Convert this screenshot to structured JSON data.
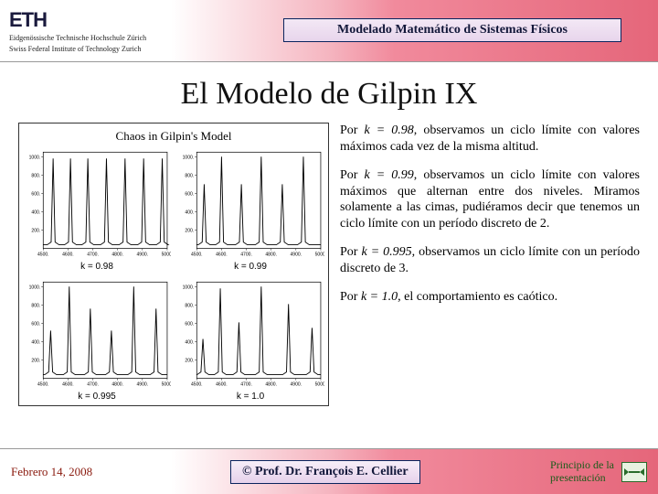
{
  "header": {
    "logo": "ETH",
    "sub1": "Eidgenössische Technische Hochschule Zürich",
    "sub2": "Swiss Federal Institute of Technology Zurich",
    "banner": "Modelado Matemático de Sistemas Físicos"
  },
  "title": "El Modelo de Gilpin IX",
  "chart": {
    "title": "Chaos in Gilpin's Model",
    "title_fontsize": 13,
    "title_font": "Comic Sans MS",
    "panels": [
      {
        "k_label": "k = 0.98",
        "yticks": [
          200,
          400,
          600,
          800,
          1000
        ],
        "xticks": [
          "4500.",
          "4600.",
          "4700.",
          "4800.",
          "4900.",
          "5000."
        ],
        "ylim": [
          0,
          1050
        ],
        "xlim": [
          4500,
          5000
        ],
        "peaks_x": [
          4540,
          4610,
          4680,
          4755,
          4830,
          4905,
          4980
        ],
        "peaks_y": [
          980,
          980,
          980,
          980,
          980,
          980,
          980
        ],
        "line_color": "#000000"
      },
      {
        "k_label": "k = 0.99",
        "yticks": [
          200,
          400,
          600,
          800,
          1000
        ],
        "xticks": [
          "4500.",
          "4600.",
          "4700.",
          "4800.",
          "4900.",
          "5000."
        ],
        "ylim": [
          0,
          1050
        ],
        "xlim": [
          4500,
          5000
        ],
        "peaks_x": [
          4530,
          4600,
          4680,
          4760,
          4845,
          4930
        ],
        "peaks_y": [
          700,
          1000,
          700,
          1000,
          700,
          1000
        ],
        "line_color": "#000000"
      },
      {
        "k_label": "k = 0.995",
        "yticks": [
          200,
          400,
          600,
          800,
          1000
        ],
        "xticks": [
          "4500.",
          "4600.",
          "4700.",
          "4800.",
          "4900.",
          "5000."
        ],
        "ylim": [
          0,
          1050
        ],
        "xlim": [
          4500,
          5000
        ],
        "peaks_x": [
          4530,
          4605,
          4690,
          4775,
          4865,
          4955
        ],
        "peaks_y": [
          520,
          1000,
          760,
          520,
          1000,
          760
        ],
        "line_color": "#000000"
      },
      {
        "k_label": "k = 1.0",
        "yticks": [
          200,
          400,
          600,
          800,
          1000
        ],
        "xticks": [
          "4500.",
          "4600.",
          "4700.",
          "4800.",
          "4900.",
          "5000."
        ],
        "ylim": [
          0,
          1050
        ],
        "xlim": [
          4500,
          5000
        ],
        "peaks_x": [
          4525,
          4595,
          4670,
          4760,
          4870,
          4965
        ],
        "peaks_y": [
          430,
          980,
          610,
          1000,
          810,
          550
        ],
        "line_color": "#000000"
      }
    ],
    "axis_color": "#000000",
    "background_color": "#ffffff",
    "tick_fontsize": 5
  },
  "paragraphs": [
    {
      "k": "k = 0.98",
      "text": ", observamos un ciclo límite con valores máximos cada vez de la misma altitud."
    },
    {
      "k": "k = 0.99",
      "text": ", observamos un ciclo límite con valores máximos que alternan entre dos niveles. Miramos solamente a las cimas, pudiéramos decir que tenemos un ciclo límite con un período discreto de 2."
    },
    {
      "k": "k = 0.995",
      "text": ", observamos un ciclo límite con un período discreto de 3."
    },
    {
      "k": "k = 1.0",
      "text": ", el comportamiento es caótico."
    }
  ],
  "paragraph_lead": "Por ",
  "footer": {
    "date": "Febrero 14, 2008",
    "author": "© Prof. Dr. François E. Cellier",
    "nav1": "Principio de la",
    "nav2": "presentación"
  },
  "colors": {
    "header_grad_start": "#ffffff",
    "header_grad_mid": "#f5b5c0",
    "header_grad_end": "#e5667a",
    "banner_border": "#0a245e",
    "banner_bg_top": "#f3e8f5",
    "banner_bg_bottom": "#e8d5ec",
    "date_color": "#8a1a0e",
    "nav_color": "#1a5c1a",
    "eth_color": "#1a1a3d"
  }
}
